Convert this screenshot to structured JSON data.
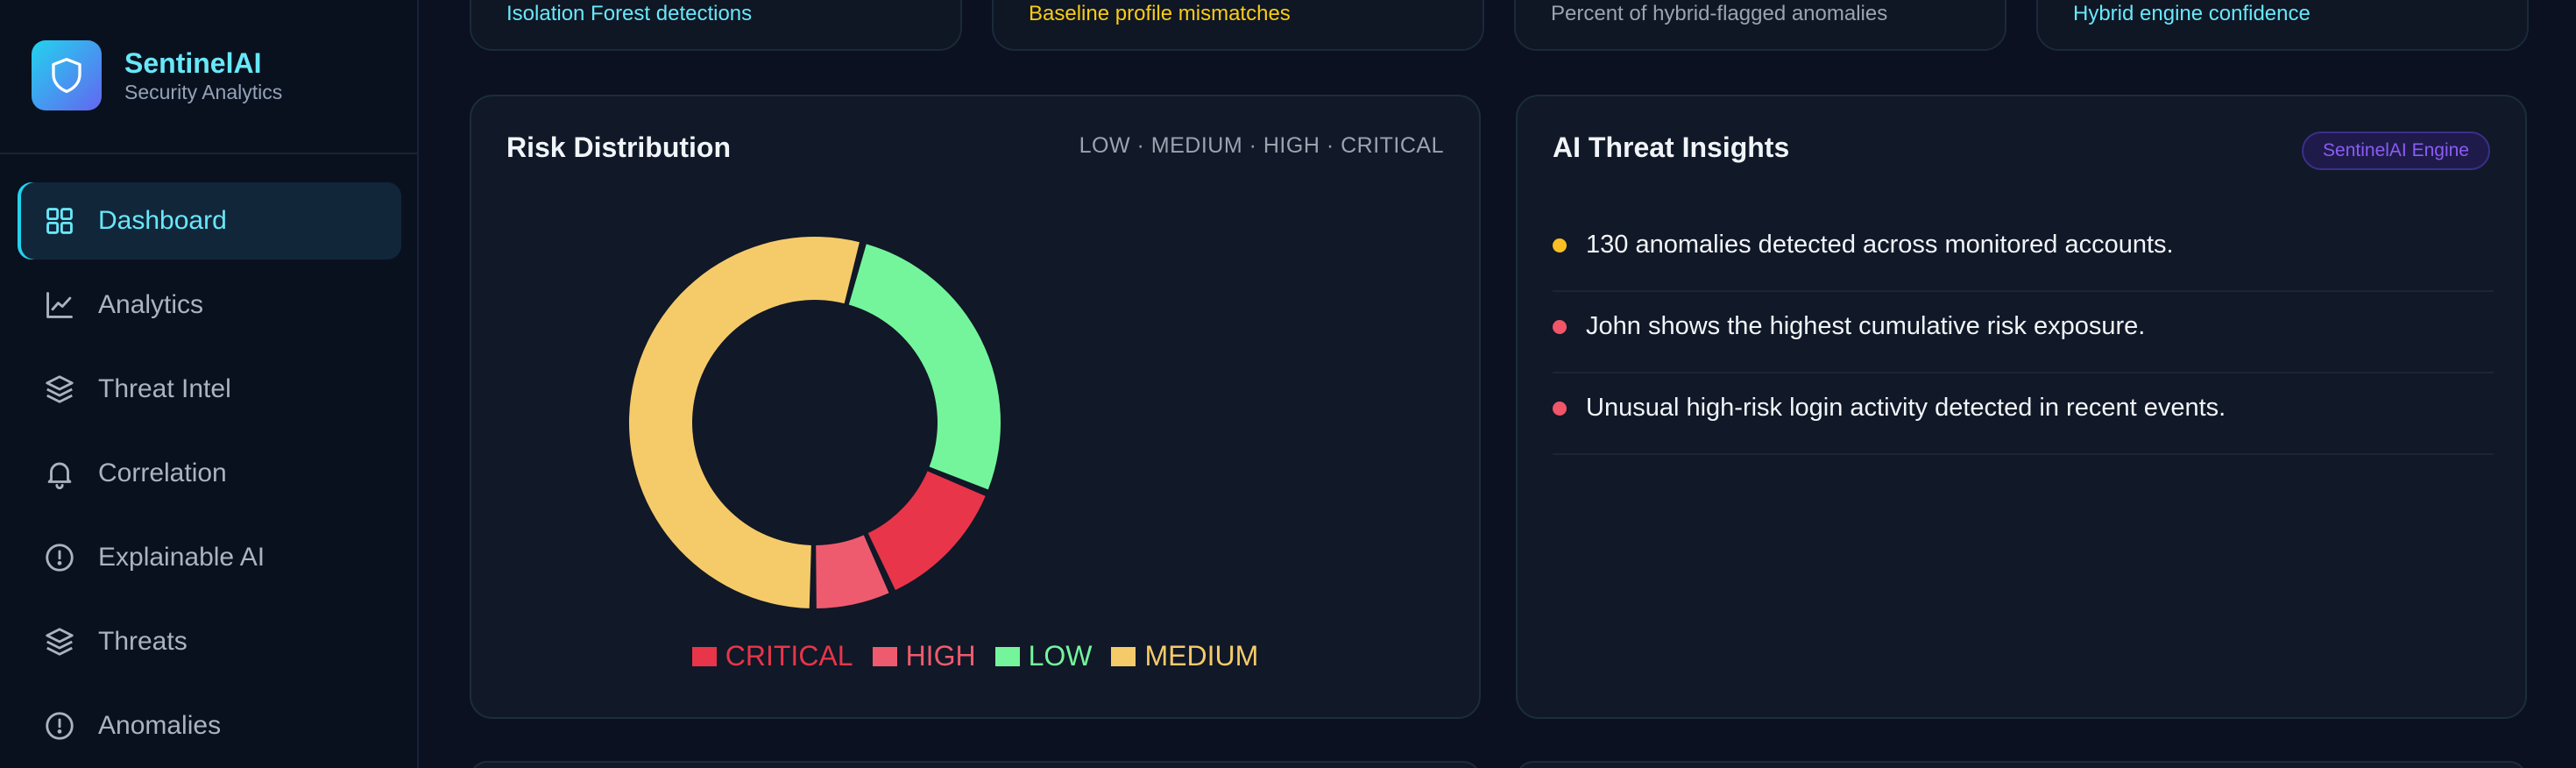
{
  "brand": {
    "name": "SentinelAI",
    "subtitle": "Security Analytics"
  },
  "nav": [
    {
      "label": "Dashboard",
      "icon": "grid-icon",
      "active": true
    },
    {
      "label": "Analytics",
      "icon": "line-chart-icon"
    },
    {
      "label": "Threat Intel",
      "icon": "layers-icon"
    },
    {
      "label": "Correlation",
      "icon": "bell-icon"
    },
    {
      "label": "Explainable AI",
      "icon": "alert-circle-icon"
    },
    {
      "label": "Threats",
      "icon": "layers-icon"
    },
    {
      "label": "Anomalies",
      "icon": "alert-circle-icon"
    }
  ],
  "stat_cards": [
    {
      "caption": "Isolation Forest detections",
      "color": "#67e8f9"
    },
    {
      "caption": "Baseline profile mismatches",
      "color": "#facc15"
    },
    {
      "caption": "Percent of hybrid-flagged anomalies",
      "color": "#9ca3af"
    },
    {
      "caption": "Hybrid engine confidence",
      "color": "#67e8f9"
    }
  ],
  "risk": {
    "title": "Risk Distribution",
    "meta": "LOW · MEDIUM · HIGH · CRITICAL",
    "chart_data": {
      "type": "pie",
      "categories": [
        "LOW",
        "CRITICAL",
        "HIGH",
        "MEDIUM"
      ],
      "values": [
        27,
        12,
        7,
        54
      ],
      "colors": {
        "LOW": "#74f59c",
        "CRITICAL": "#e8354a",
        "HIGH": "#ef5b6e",
        "MEDIUM": "#f5cb6a"
      },
      "legend_order": [
        "CRITICAL",
        "HIGH",
        "LOW",
        "MEDIUM"
      ],
      "legend_placement": "bottom"
    }
  },
  "insights": {
    "title": "AI Threat Insights",
    "badge": "SentinelAI Engine",
    "items": [
      {
        "text": "130 anomalies detected across monitored accounts.",
        "color": "#fbbf24"
      },
      {
        "text": "John shows the highest cumulative risk exposure.",
        "color": "#f0556a"
      },
      {
        "text": "Unusual high-risk login activity detected in recent events.",
        "color": "#f0556a"
      }
    ]
  }
}
